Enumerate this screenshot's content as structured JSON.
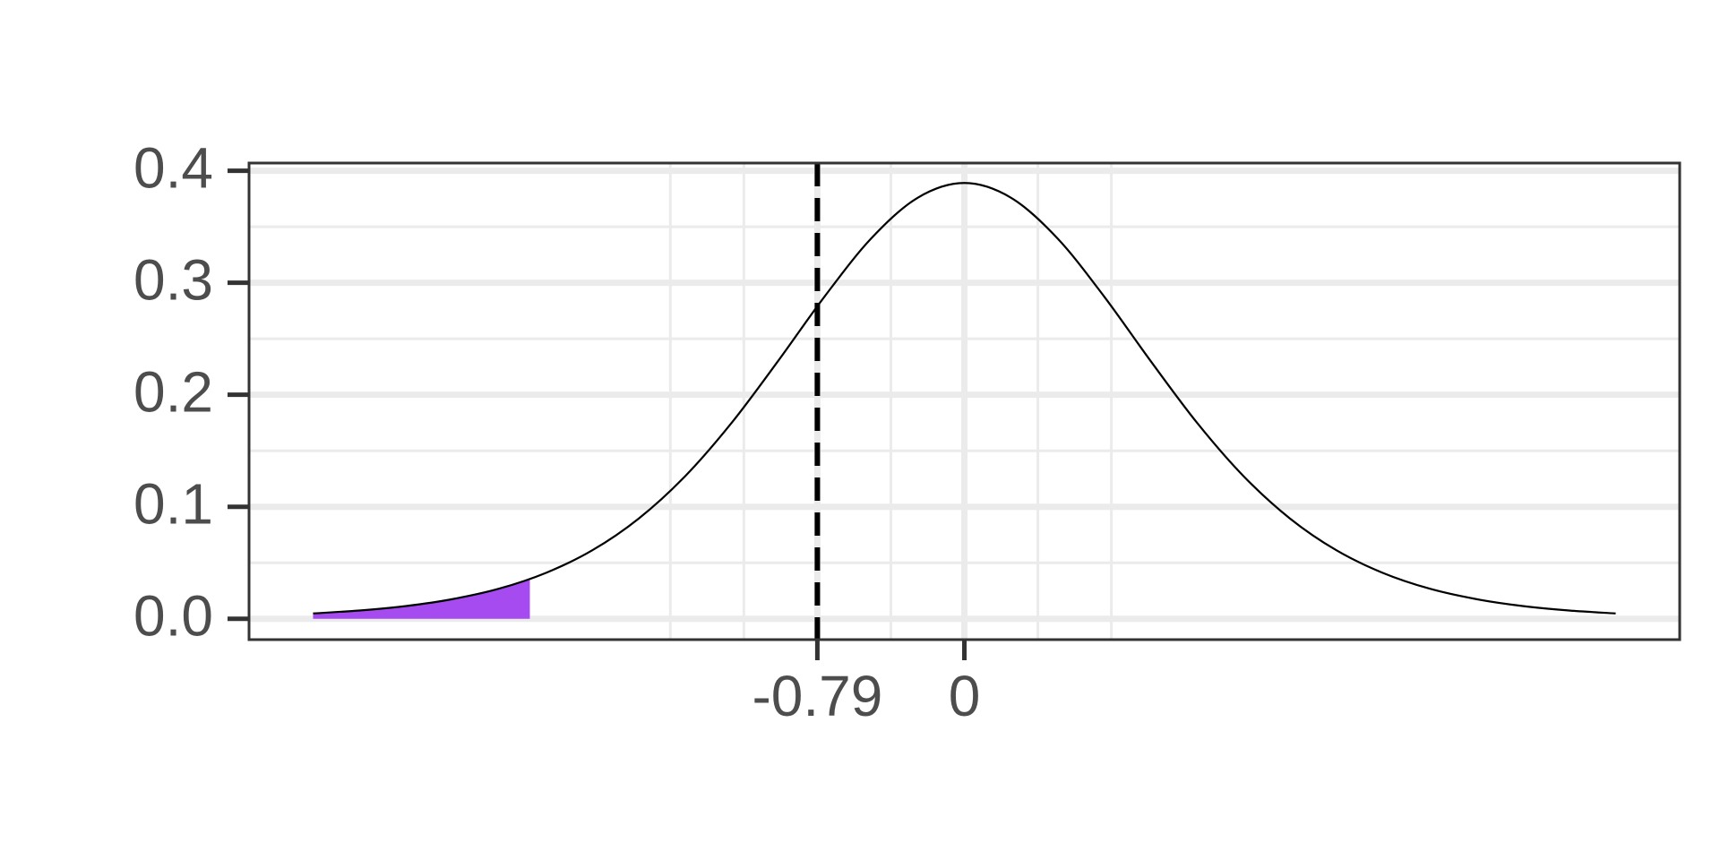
{
  "chart_data": {
    "type": "line",
    "x": [
      -3.5,
      -3.25,
      -3.0,
      -2.75,
      -2.5,
      -2.25,
      -2.0,
      -1.75,
      -1.5,
      -1.25,
      -1.0,
      -0.75,
      -0.5,
      -0.25,
      0,
      0.25,
      0.5,
      0.75,
      1.0,
      1.25,
      1.5,
      1.75,
      2.0,
      2.25,
      2.5,
      2.75,
      3.0,
      3.25,
      3.5
    ],
    "series": [
      {
        "color": "#000000",
        "values": [
          0.0048,
          0.0074,
          0.0114,
          0.0176,
          0.0269,
          0.0409,
          0.0611,
          0.0895,
          0.1274,
          0.1751,
          0.2304,
          0.288,
          0.3397,
          0.376,
          0.3891,
          0.376,
          0.3397,
          0.288,
          0.2304,
          0.1751,
          0.1274,
          0.0895,
          0.0611,
          0.0409,
          0.0269,
          0.0176,
          0.0114,
          0.0074,
          0.0048
        ]
      }
    ],
    "shade": {
      "color": "#a64bef",
      "x": [
        -3.5,
        -3.25,
        -3.0,
        -2.75,
        -2.5,
        -2.335
      ],
      "values": [
        0.0048,
        0.0074,
        0.0114,
        0.0176,
        0.0269,
        0.0355
      ]
    },
    "vline": -0.79,
    "xlim": [
      -3.844,
      3.844
    ],
    "ylim": [
      -0.0186,
      0.4069
    ],
    "xticks": [
      -0.79,
      0
    ],
    "x_minor_grid": [
      -1.58,
      -1.185,
      -0.395,
      0.395,
      0.79
    ],
    "yticks": [
      {
        "value": 0,
        "label": "0.0"
      },
      0.1,
      0.2,
      0.3,
      0.4
    ],
    "y_minor_grid": [
      0.05,
      0.15,
      0.25,
      0.35
    ],
    "grid": true
  }
}
